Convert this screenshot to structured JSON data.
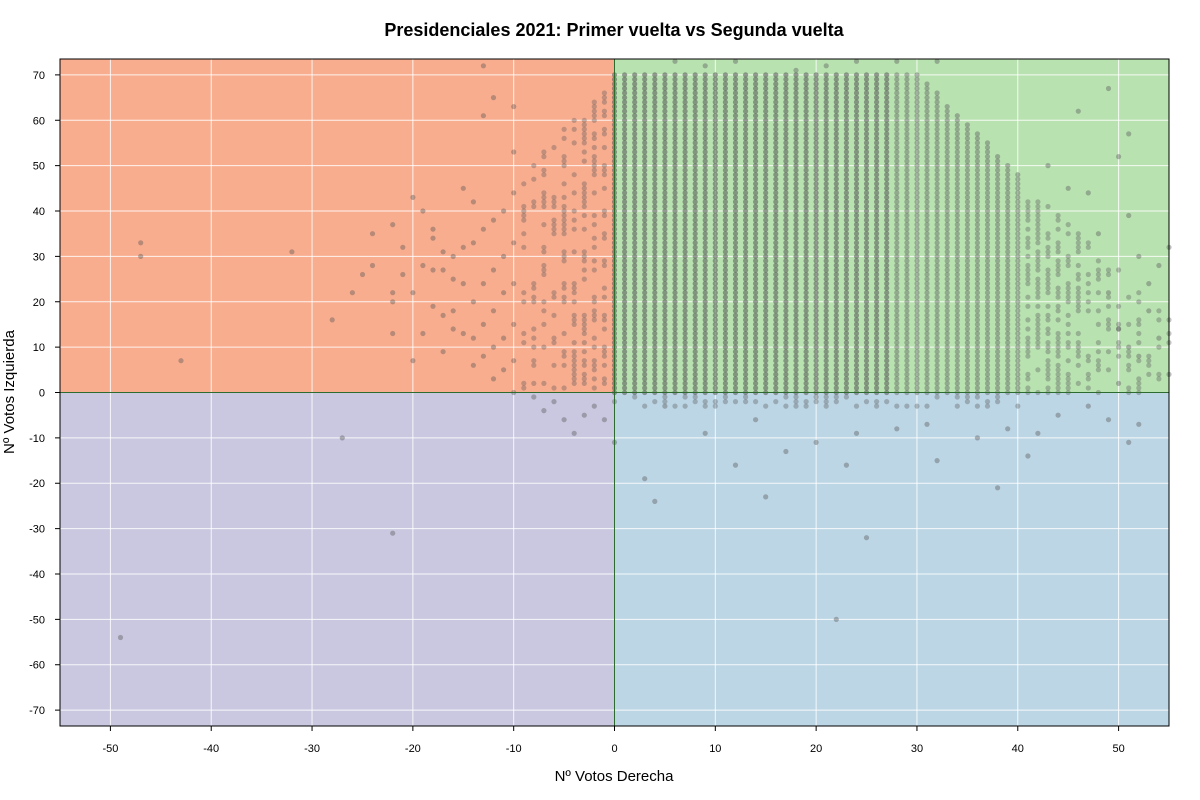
{
  "chart_data": {
    "type": "scatter",
    "title": "Presidenciales 2021: Primer vuelta vs Segunda vuelta",
    "xlabel": "Nº Votos Derecha",
    "ylabel": "Nº Votos Izquierda",
    "xlim": [
      -55,
      55
    ],
    "ylim": [
      -73.5,
      73.5
    ],
    "xticks": [
      -50,
      -40,
      -30,
      -20,
      -10,
      0,
      10,
      20,
      30,
      40,
      50
    ],
    "yticks": [
      70,
      60,
      50,
      40,
      30,
      20,
      10,
      0,
      -10,
      -20,
      -30,
      -40,
      -50,
      -60,
      -70
    ],
    "grid": true,
    "quadrant_colors": {
      "top_left": "#f9ad8f",
      "top_right": "#b9e2b1",
      "bottom_left": "#c9c8e0",
      "bottom_right": "#bcd6e5"
    },
    "reference_line_color": "#2e6b2e",
    "point_color": "#555555",
    "dense_region": {
      "description_free_points": "integer x from 0 to 40 with y filled from about 0 to 70 (bulk of data)",
      "x_from": 0,
      "x_to": 40,
      "y_from": -2,
      "y_to": 70
    },
    "points": [
      [
        -49,
        -54
      ],
      [
        -47,
        33
      ],
      [
        -47,
        30
      ],
      [
        -43,
        7
      ],
      [
        -32,
        31
      ],
      [
        -28,
        16
      ],
      [
        -27,
        -10
      ],
      [
        -26,
        22
      ],
      [
        -25,
        26
      ],
      [
        -24,
        35
      ],
      [
        -24,
        28
      ],
      [
        -22,
        37
      ],
      [
        -22,
        22
      ],
      [
        -22,
        13
      ],
      [
        -22,
        -31
      ],
      [
        -21,
        32
      ],
      [
        -20,
        43
      ],
      [
        -20,
        22
      ],
      [
        -20,
        7
      ],
      [
        -19,
        40
      ],
      [
        -19,
        13
      ],
      [
        -18,
        36
      ],
      [
        -18,
        34
      ],
      [
        -18,
        27
      ],
      [
        -17,
        31
      ],
      [
        -17,
        27
      ],
      [
        -17,
        17
      ],
      [
        -16,
        30
      ],
      [
        -16,
        25
      ],
      [
        -16,
        18
      ],
      [
        -15,
        45
      ],
      [
        -15,
        32
      ],
      [
        -15,
        24
      ],
      [
        -15,
        13
      ],
      [
        -14,
        42
      ],
      [
        -14,
        33
      ],
      [
        -14,
        20
      ],
      [
        -14,
        12
      ],
      [
        -14,
        6
      ],
      [
        -13,
        72
      ],
      [
        -13,
        61
      ],
      [
        -13,
        36
      ],
      [
        -13,
        24
      ],
      [
        -13,
        15
      ],
      [
        -13,
        8
      ],
      [
        -12,
        65
      ],
      [
        -12,
        38
      ],
      [
        -12,
        27
      ],
      [
        -12,
        18
      ],
      [
        -12,
        10
      ],
      [
        -12,
        3
      ],
      [
        -11,
        40
      ],
      [
        -11,
        30
      ],
      [
        -11,
        22
      ],
      [
        -11,
        12
      ],
      [
        -11,
        5
      ],
      [
        -10,
        63
      ],
      [
        -10,
        53
      ],
      [
        -10,
        44
      ],
      [
        -10,
        33
      ],
      [
        -10,
        24
      ],
      [
        -10,
        15
      ],
      [
        -10,
        7
      ],
      [
        -10,
        0
      ],
      [
        -22,
        20
      ],
      [
        -21,
        26
      ],
      [
        -19,
        28
      ],
      [
        -18,
        19
      ],
      [
        -17,
        9
      ],
      [
        -16,
        14
      ],
      [
        3,
        -19
      ],
      [
        4,
        -24
      ],
      [
        12,
        -16
      ],
      [
        15,
        -23
      ],
      [
        22,
        -50
      ],
      [
        23,
        -16
      ],
      [
        25,
        -32
      ],
      [
        32,
        -15
      ],
      [
        38,
        -21
      ],
      [
        41,
        -14
      ],
      [
        49,
        67
      ],
      [
        50,
        52
      ],
      [
        51,
        57
      ],
      [
        51,
        39
      ],
      [
        46,
        62
      ],
      [
        45,
        45
      ],
      [
        43,
        50
      ],
      [
        47,
        44
      ],
      [
        48,
        35
      ],
      [
        52,
        30
      ],
      [
        53,
        24
      ],
      [
        54,
        28
      ],
      [
        55,
        32
      ],
      [
        53,
        18
      ],
      [
        54,
        12
      ],
      [
        55,
        4
      ],
      [
        52,
        8
      ],
      [
        50,
        14
      ],
      [
        49,
        22
      ],
      [
        51,
        10
      ],
      [
        50,
        2
      ],
      [
        49,
        -6
      ],
      [
        51,
        -11
      ],
      [
        52,
        -7
      ],
      [
        47,
        -3
      ],
      [
        44,
        -5
      ],
      [
        42,
        -9
      ],
      [
        39,
        -8
      ],
      [
        36,
        -10
      ],
      [
        31,
        -7
      ],
      [
        28,
        -8
      ],
      [
        24,
        -9
      ],
      [
        20,
        -11
      ],
      [
        17,
        -13
      ],
      [
        14,
        -6
      ],
      [
        9,
        -9
      ],
      [
        5,
        -3
      ],
      [
        0,
        -11
      ],
      [
        -1,
        -6
      ],
      [
        -3,
        -5
      ],
      [
        -4,
        -9
      ],
      [
        -6,
        -2
      ],
      [
        -7,
        -4
      ],
      [
        -8,
        -1
      ],
      [
        -5,
        -6
      ],
      [
        -2,
        -3
      ],
      [
        28,
        73
      ],
      [
        32,
        73
      ],
      [
        21,
        72
      ],
      [
        24,
        73
      ],
      [
        6,
        73
      ],
      [
        9,
        72
      ],
      [
        12,
        73
      ],
      [
        18,
        71
      ]
    ]
  }
}
